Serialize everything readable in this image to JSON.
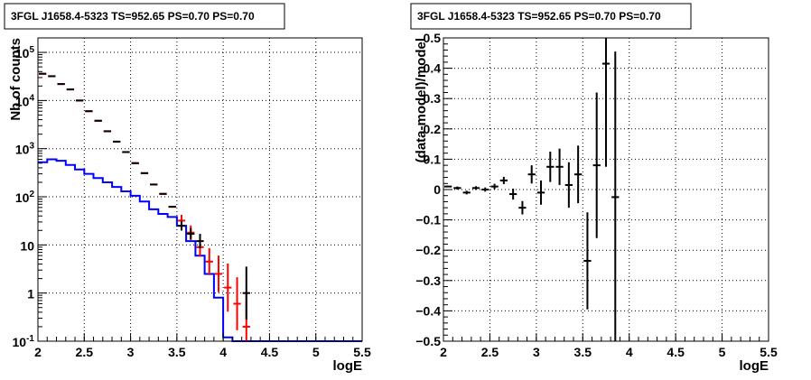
{
  "chart_data": [
    {
      "type": "line",
      "title": "3FGL J1658.4-5323 TS=952.65 PS=0.70 PS=0.70",
      "xlabel": "logE",
      "ylabel": "Nb of counts",
      "xlim": [
        2,
        5.5
      ],
      "ylim": [
        0.1,
        200000
      ],
      "yscale": "log",
      "grid": true,
      "x_ticks": [
        "2",
        "2.5",
        "3",
        "3.5",
        "4",
        "4.5",
        "5",
        "5.5"
      ],
      "y_ticks": [
        "10^{-1}",
        "1",
        "10",
        "10^{2}",
        "10^{3}",
        "10^{4}",
        "10^{5}"
      ],
      "bin_width": 0.1,
      "series": [
        {
          "color": "#0000ff",
          "style": "histogram",
          "x": [
            2.0,
            2.1,
            2.2,
            2.3,
            2.4,
            2.5,
            2.6,
            2.7,
            2.8,
            2.9,
            3.0,
            3.1,
            3.2,
            3.3,
            3.4,
            3.5,
            3.6,
            3.7,
            3.8,
            3.9,
            4.0,
            4.1,
            4.2,
            4.3,
            4.4,
            4.5,
            4.6,
            4.7,
            4.8,
            4.9,
            5.0,
            5.1,
            5.2,
            5.3,
            5.4
          ],
          "values": [
            520,
            600,
            560,
            460,
            370,
            300,
            245,
            200,
            160,
            130,
            105,
            80,
            55,
            44,
            38,
            25,
            12,
            6,
            2.5,
            0.8,
            0.12,
            0.1,
            0.1,
            0.1,
            0.1,
            0.1,
            0.1,
            0.1,
            0.1,
            0.1,
            0.1,
            0.1,
            0.1,
            0.1,
            0.1
          ]
        },
        {
          "color": "#ff0000",
          "style": "points",
          "x": [
            2.05,
            2.15,
            2.25,
            2.35,
            2.45,
            2.55,
            2.65,
            2.75,
            2.85,
            2.95,
            3.05,
            3.15,
            3.25,
            3.35,
            3.45,
            3.55,
            3.65,
            3.75,
            3.85,
            3.95,
            4.05,
            4.15,
            4.25
          ],
          "values": [
            36000,
            32000,
            22000,
            17000,
            10000,
            6000,
            3800,
            2300,
            1400,
            850,
            500,
            310,
            180,
            115,
            62,
            32,
            18,
            9,
            4.5,
            2.5,
            1.3,
            0.6,
            0.2
          ],
          "y_err": [
            0.0,
            0.0,
            0.0,
            0.0,
            0.0,
            0.0,
            0.0,
            0.0,
            0.0,
            0.0,
            0.0,
            0.0,
            0.0,
            0.0,
            0.0,
            0.12,
            0.15,
            0.2,
            0.28,
            0.38,
            0.5,
            0.55,
            0.7
          ]
        },
        {
          "color": "#000000",
          "style": "points",
          "x": [
            2.05,
            2.15,
            2.25,
            2.35,
            2.45,
            2.55,
            2.65,
            2.75,
            2.85,
            2.95,
            3.05,
            3.15,
            3.25,
            3.35,
            3.45,
            3.55,
            3.65,
            3.75,
            4.25
          ],
          "values": [
            36000,
            32000,
            22000,
            17000,
            10000,
            6000,
            3800,
            2300,
            1400,
            850,
            500,
            310,
            180,
            115,
            62,
            25,
            17,
            12,
            1
          ],
          "y_err": [
            0.0,
            0.0,
            0.0,
            0.0,
            0.0,
            0.0,
            0.0,
            0.0,
            0.0,
            0.0,
            0.0,
            0.0,
            0.0,
            0.0,
            0.0,
            0.1,
            0.12,
            0.15,
            0.55
          ]
        }
      ]
    },
    {
      "type": "scatter",
      "title": "3FGL J1658.4-5323 TS=952.65 PS=0.70 PS=0.70",
      "xlabel": "logE",
      "ylabel": "(data-model)/model",
      "xlim": [
        2,
        5.5
      ],
      "ylim": [
        -0.5,
        0.5
      ],
      "grid": true,
      "x_ticks": [
        "2",
        "2.5",
        "3",
        "3.5",
        "4",
        "4.5",
        "5",
        "5.5"
      ],
      "y_ticks": [
        "−0.5",
        "−0.4",
        "−0.3",
        "−0.2",
        "−0.1",
        "0",
        "0.1",
        "0.2",
        "0.3",
        "0.4",
        "0.5"
      ],
      "series": [
        {
          "color": "#000000",
          "x": [
            2.05,
            2.15,
            2.25,
            2.35,
            2.45,
            2.55,
            2.65,
            2.75,
            2.85,
            2.95,
            3.05,
            3.15,
            3.25,
            3.35,
            3.45,
            3.55,
            3.65,
            3.75,
            3.85
          ],
          "y": [
            0.01,
            0.005,
            -0.01,
            0.005,
            0.0,
            0.01,
            0.03,
            -0.015,
            -0.06,
            0.05,
            -0.01,
            0.075,
            0.075,
            0.015,
            0.05,
            -0.235,
            0.08,
            0.415,
            -0.025
          ],
          "y_err": [
            0.0,
            0.005,
            0.006,
            0.006,
            0.007,
            0.009,
            0.012,
            0.018,
            0.022,
            0.03,
            0.04,
            0.05,
            0.06,
            0.075,
            0.095,
            0.16,
            0.24,
            0.34,
            0.48
          ]
        }
      ]
    }
  ]
}
